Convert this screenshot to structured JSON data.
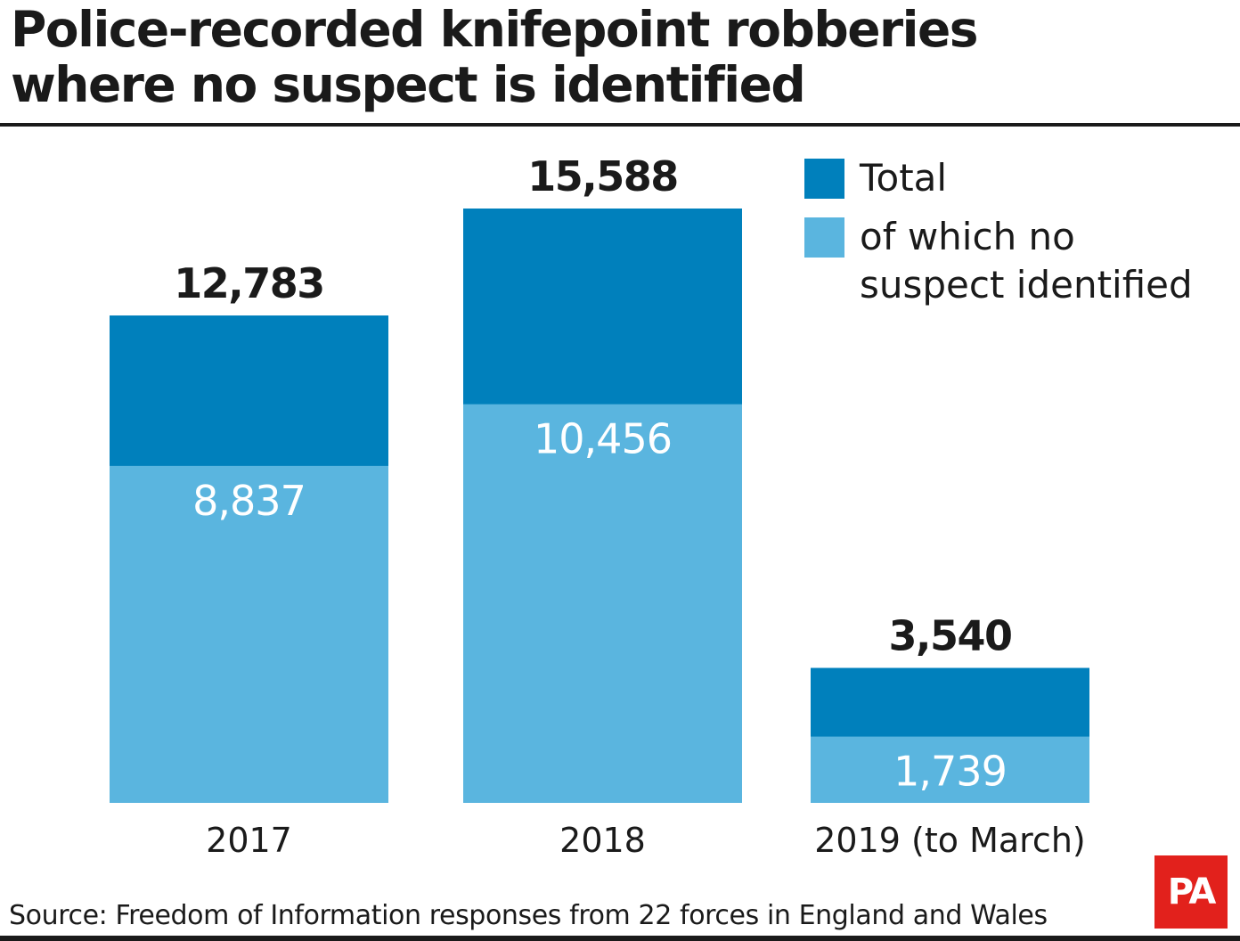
{
  "chart_data": {
    "type": "bar",
    "stacked": "overlaid",
    "title": "Police-recorded knifepoint robberies where no suspect is identified",
    "title_lines": [
      "Police-recorded knifepoint robberies",
      "where no suspect is identified"
    ],
    "categories": [
      "2017",
      "2018",
      "2019 (to March)"
    ],
    "series": [
      {
        "name": "Total",
        "values": [
          12783,
          15588,
          3540
        ],
        "labels": [
          "12,783",
          "15,588",
          "3,540"
        ],
        "color": "#0080bc"
      },
      {
        "name": "of which no suspect identified",
        "values": [
          8837,
          10456,
          1739
        ],
        "labels": [
          "8,837",
          "10,456",
          "1,739"
        ],
        "color": "#5ab5df"
      }
    ],
    "legend": {
      "position": "top-right",
      "entries": [
        {
          "label": "Total",
          "color": "#0080bc"
        },
        {
          "label_lines": [
            "of which no",
            "suspect identified"
          ],
          "color": "#5ab5df"
        }
      ]
    },
    "ylim": [
      0,
      15588
    ],
    "grid": false,
    "source": "Source: Freedom of Information responses from 22 forces in England and Wales"
  },
  "logo": {
    "text": "PA",
    "color": "#e2211c"
  }
}
